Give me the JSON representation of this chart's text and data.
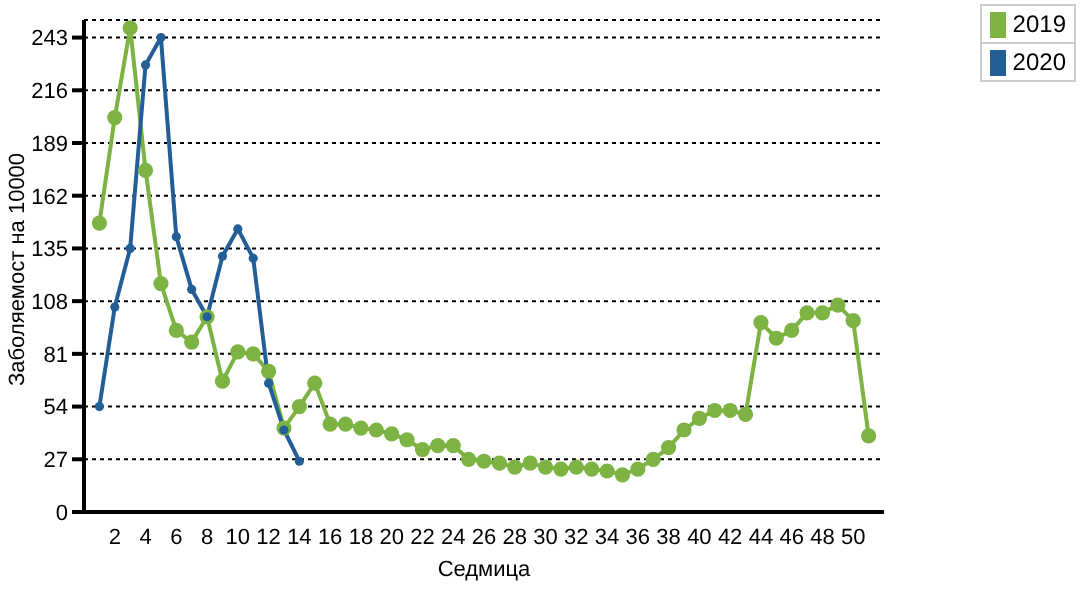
{
  "chart_data": {
    "type": "line",
    "xlabel": "Седмица",
    "ylabel": "Заболяемост на 10000",
    "x": [
      1,
      2,
      3,
      4,
      5,
      6,
      7,
      8,
      9,
      10,
      11,
      12,
      13,
      14,
      15,
      16,
      17,
      18,
      19,
      20,
      21,
      22,
      23,
      24,
      25,
      26,
      27,
      28,
      29,
      30,
      31,
      32,
      33,
      34,
      35,
      36,
      37,
      38,
      39,
      40,
      41,
      42,
      43,
      44,
      45,
      46,
      47,
      48,
      49,
      50,
      51
    ],
    "series": [
      {
        "name": "2019",
        "color": "#7cb342",
        "values": [
          148,
          202,
          248,
          175,
          117,
          93,
          87,
          100,
          67,
          82,
          81,
          72,
          43,
          54,
          66,
          45,
          45,
          43,
          42,
          40,
          37,
          32,
          34,
          34,
          27,
          26,
          25,
          23,
          25,
          23,
          22,
          23,
          22,
          21,
          19,
          22,
          27,
          33,
          42,
          48,
          52,
          52,
          50,
          97,
          89,
          93,
          102,
          102,
          106,
          98,
          39
        ]
      },
      {
        "name": "2020",
        "color": "#235f96",
        "x": [
          1,
          2,
          3,
          4,
          5,
          6,
          7,
          8,
          9,
          10,
          11,
          12,
          13,
          14
        ],
        "values": [
          54,
          105,
          135,
          229,
          243,
          141,
          114,
          100,
          131,
          145,
          130,
          66,
          42,
          26
        ]
      }
    ],
    "xlim": [
      0,
      52
    ],
    "xticks": [
      2,
      4,
      6,
      8,
      10,
      12,
      14,
      16,
      18,
      20,
      22,
      24,
      26,
      28,
      30,
      32,
      34,
      36,
      38,
      40,
      42,
      44,
      46,
      48,
      50
    ],
    "ylim": [
      0,
      252
    ],
    "yticks": [
      0,
      27,
      54,
      81,
      108,
      135,
      162,
      189,
      216,
      243
    ],
    "grid": "y",
    "legend": "top right",
    "marker": "circle",
    "line_style": "solid"
  }
}
